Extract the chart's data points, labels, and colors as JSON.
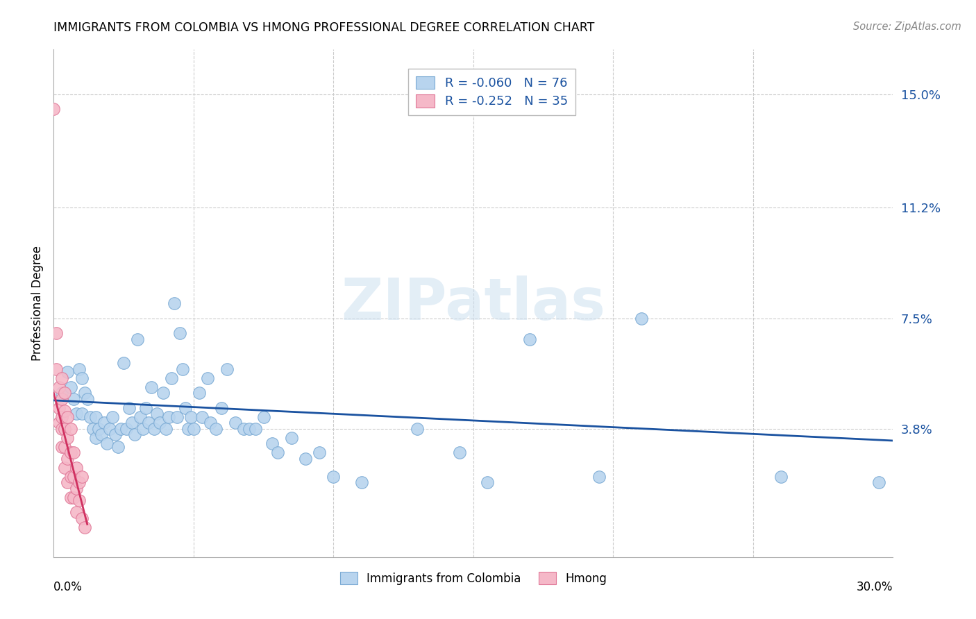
{
  "title": "IMMIGRANTS FROM COLOMBIA VS HMONG PROFESSIONAL DEGREE CORRELATION CHART",
  "source": "Source: ZipAtlas.com",
  "ylabel": "Professional Degree",
  "xmin": 0.0,
  "xmax": 0.3,
  "ymin": -0.005,
  "ymax": 0.165,
  "ytick_vals": [
    0.038,
    0.075,
    0.112,
    0.15
  ],
  "ytick_labels": [
    "3.8%",
    "7.5%",
    "11.2%",
    "15.0%"
  ],
  "colombia_color": "#b8d4ee",
  "colombia_edge": "#7aaad4",
  "hmong_color": "#f5b8c8",
  "hmong_edge": "#e07898",
  "colombia_line_color": "#1a52a0",
  "hmong_line_color": "#d03060",
  "watermark_text": "ZIPatlas",
  "legend_r_colombia": "R = -0.060",
  "legend_n_colombia": "N = 76",
  "legend_r_hmong": "R = -0.252",
  "legend_n_hmong": "N = 35",
  "legend_val_color": "#1a52a0",
  "colombia_scatter": [
    [
      0.003,
      0.05
    ],
    [
      0.005,
      0.057
    ],
    [
      0.006,
      0.052
    ],
    [
      0.007,
      0.048
    ],
    [
      0.008,
      0.043
    ],
    [
      0.009,
      0.058
    ],
    [
      0.01,
      0.055
    ],
    [
      0.01,
      0.043
    ],
    [
      0.011,
      0.05
    ],
    [
      0.012,
      0.048
    ],
    [
      0.013,
      0.042
    ],
    [
      0.014,
      0.038
    ],
    [
      0.015,
      0.035
    ],
    [
      0.015,
      0.042
    ],
    [
      0.016,
      0.038
    ],
    [
      0.017,
      0.036
    ],
    [
      0.018,
      0.04
    ],
    [
      0.019,
      0.033
    ],
    [
      0.02,
      0.038
    ],
    [
      0.021,
      0.042
    ],
    [
      0.022,
      0.036
    ],
    [
      0.023,
      0.032
    ],
    [
      0.024,
      0.038
    ],
    [
      0.025,
      0.06
    ],
    [
      0.026,
      0.038
    ],
    [
      0.027,
      0.045
    ],
    [
      0.028,
      0.04
    ],
    [
      0.029,
      0.036
    ],
    [
      0.03,
      0.068
    ],
    [
      0.031,
      0.042
    ],
    [
      0.032,
      0.038
    ],
    [
      0.033,
      0.045
    ],
    [
      0.034,
      0.04
    ],
    [
      0.035,
      0.052
    ],
    [
      0.036,
      0.038
    ],
    [
      0.037,
      0.043
    ],
    [
      0.038,
      0.04
    ],
    [
      0.039,
      0.05
    ],
    [
      0.04,
      0.038
    ],
    [
      0.041,
      0.042
    ],
    [
      0.042,
      0.055
    ],
    [
      0.043,
      0.08
    ],
    [
      0.044,
      0.042
    ],
    [
      0.045,
      0.07
    ],
    [
      0.046,
      0.058
    ],
    [
      0.047,
      0.045
    ],
    [
      0.048,
      0.038
    ],
    [
      0.049,
      0.042
    ],
    [
      0.05,
      0.038
    ],
    [
      0.052,
      0.05
    ],
    [
      0.053,
      0.042
    ],
    [
      0.055,
      0.055
    ],
    [
      0.056,
      0.04
    ],
    [
      0.058,
      0.038
    ],
    [
      0.06,
      0.045
    ],
    [
      0.062,
      0.058
    ],
    [
      0.065,
      0.04
    ],
    [
      0.068,
      0.038
    ],
    [
      0.07,
      0.038
    ],
    [
      0.072,
      0.038
    ],
    [
      0.075,
      0.042
    ],
    [
      0.078,
      0.033
    ],
    [
      0.08,
      0.03
    ],
    [
      0.085,
      0.035
    ],
    [
      0.09,
      0.028
    ],
    [
      0.095,
      0.03
    ],
    [
      0.1,
      0.022
    ],
    [
      0.11,
      0.02
    ],
    [
      0.13,
      0.038
    ],
    [
      0.145,
      0.03
    ],
    [
      0.155,
      0.02
    ],
    [
      0.17,
      0.068
    ],
    [
      0.195,
      0.022
    ],
    [
      0.21,
      0.075
    ],
    [
      0.26,
      0.022
    ],
    [
      0.295,
      0.02
    ]
  ],
  "hmong_scatter": [
    [
      0.0,
      0.145
    ],
    [
      0.001,
      0.07
    ],
    [
      0.001,
      0.058
    ],
    [
      0.002,
      0.052
    ],
    [
      0.002,
      0.045
    ],
    [
      0.002,
      0.04
    ],
    [
      0.003,
      0.055
    ],
    [
      0.003,
      0.048
    ],
    [
      0.003,
      0.042
    ],
    [
      0.003,
      0.038
    ],
    [
      0.003,
      0.032
    ],
    [
      0.004,
      0.05
    ],
    [
      0.004,
      0.044
    ],
    [
      0.004,
      0.038
    ],
    [
      0.004,
      0.032
    ],
    [
      0.004,
      0.025
    ],
    [
      0.005,
      0.042
    ],
    [
      0.005,
      0.035
    ],
    [
      0.005,
      0.028
    ],
    [
      0.005,
      0.02
    ],
    [
      0.006,
      0.038
    ],
    [
      0.006,
      0.03
    ],
    [
      0.006,
      0.022
    ],
    [
      0.006,
      0.015
    ],
    [
      0.007,
      0.03
    ],
    [
      0.007,
      0.022
    ],
    [
      0.007,
      0.015
    ],
    [
      0.008,
      0.025
    ],
    [
      0.008,
      0.018
    ],
    [
      0.008,
      0.01
    ],
    [
      0.009,
      0.02
    ],
    [
      0.009,
      0.014
    ],
    [
      0.01,
      0.022
    ],
    [
      0.01,
      0.008
    ],
    [
      0.011,
      0.005
    ]
  ],
  "colombia_line_x": [
    0.0,
    0.3
  ],
  "colombia_line_y": [
    0.0475,
    0.034
  ],
  "hmong_line_x": [
    0.0,
    0.012
  ],
  "hmong_line_y": [
    0.05,
    0.006
  ]
}
